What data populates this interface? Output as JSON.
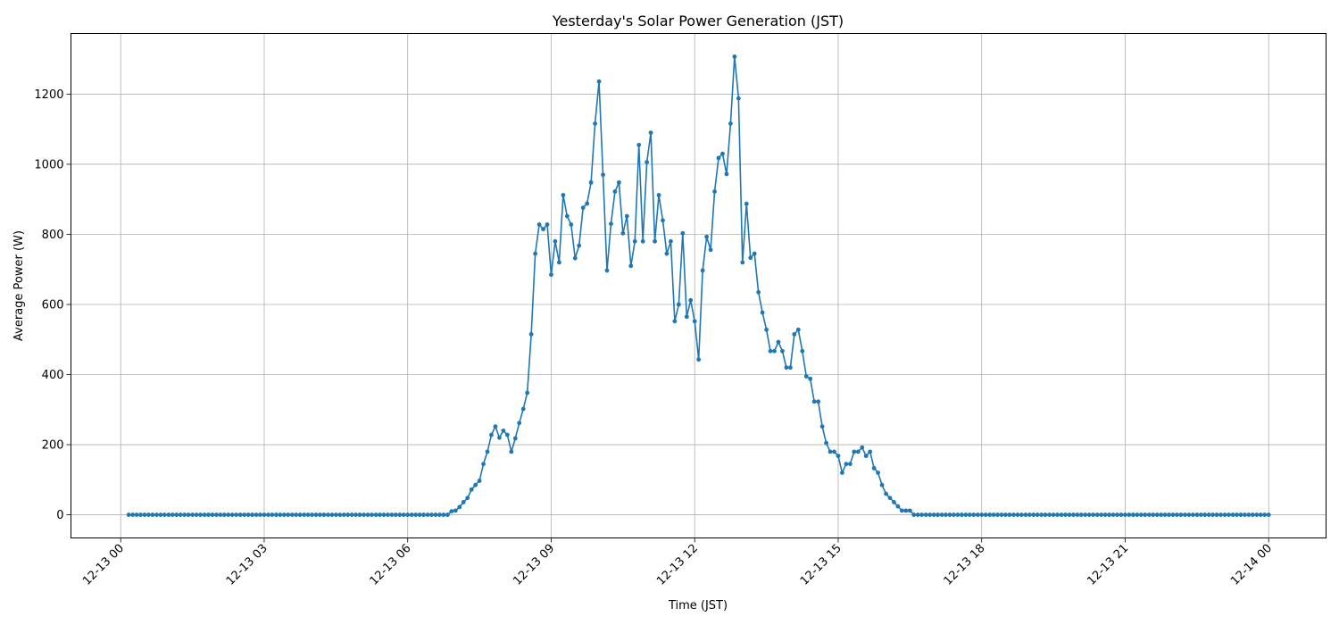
{
  "chart_data": {
    "type": "line",
    "title": "Yesterday's Solar Power Generation (JST)",
    "xlabel": "Time (JST)",
    "ylabel": "Average Power (W)",
    "x_range": [
      "12-13 00:10",
      "12-14 00:00"
    ],
    "interval_minutes": 5,
    "xlim_hours": [
      -1.04,
      25.2
    ],
    "ylim": [
      -66,
      1373
    ],
    "grid": true,
    "x_tick_labels": [
      "12-13 00",
      "12-13 03",
      "12-13 06",
      "12-13 09",
      "12-13 12",
      "12-13 15",
      "12-13 18",
      "12-13 21",
      "12-14 00"
    ],
    "x_tick_hours": [
      0,
      3,
      6,
      9,
      12,
      15,
      18,
      21,
      24
    ],
    "y_ticks": [
      0,
      200,
      400,
      600,
      800,
      1000,
      1200
    ],
    "y_tick_labels": [
      "0",
      "200",
      "400",
      "600",
      "800",
      "1000",
      "1200"
    ],
    "series": [
      {
        "color": "#1f77b4",
        "marker": "circle",
        "values": [
          0,
          0,
          0,
          0,
          0,
          0,
          0,
          0,
          0,
          0,
          0,
          0,
          0,
          0,
          0,
          0,
          0,
          0,
          0,
          0,
          0,
          0,
          0,
          0,
          0,
          0,
          0,
          0,
          0,
          0,
          0,
          0,
          0,
          0,
          0,
          0,
          0,
          0,
          0,
          0,
          0,
          0,
          0,
          0,
          0,
          0,
          0,
          0,
          0,
          0,
          0,
          0,
          0,
          0,
          0,
          0,
          0,
          0,
          0,
          0,
          0,
          0,
          0,
          0,
          0,
          0,
          0,
          0,
          0,
          0,
          0,
          0,
          0,
          0,
          0,
          0,
          0,
          0,
          0,
          0,
          0,
          10,
          12,
          22,
          36,
          48,
          72,
          85,
          97,
          145,
          180,
          228,
          252,
          220,
          240,
          228,
          180,
          218,
          262,
          302,
          348,
          515,
          745,
          828,
          815,
          828,
          685,
          780,
          720,
          912,
          852,
          828,
          732,
          768,
          876,
          888,
          948,
          1116,
          1236,
          970,
          697,
          830,
          922,
          948,
          803,
          852,
          710,
          780,
          1055,
          780,
          1006,
          1090,
          780,
          912,
          840,
          745,
          780,
          552,
          600,
          803,
          565,
          612,
          552,
          443,
          697,
          793,
          756,
          922,
          1018,
          1030,
          972,
          1116,
          1307,
          1188,
          720,
          887,
          733,
          745,
          635,
          577,
          528,
          467,
          467,
          493,
          467,
          420,
          420,
          515,
          528,
          467,
          395,
          388,
          323,
          323,
          252,
          205,
          180,
          180,
          168,
          120,
          145,
          145,
          180,
          180,
          192,
          168,
          180,
          133,
          120,
          85,
          60,
          48,
          36,
          24,
          12,
          12,
          12,
          0,
          0,
          0,
          0,
          0,
          0,
          0,
          0,
          0,
          0,
          0,
          0,
          0,
          0,
          0,
          0,
          0,
          0,
          0,
          0,
          0,
          0,
          0,
          0,
          0,
          0,
          0,
          0,
          0,
          0,
          0,
          0,
          0,
          0,
          0,
          0,
          0,
          0,
          0,
          0,
          0,
          0,
          0,
          0,
          0,
          0,
          0,
          0,
          0,
          0,
          0,
          0,
          0,
          0,
          0,
          0,
          0,
          0,
          0,
          0,
          0,
          0,
          0,
          0,
          0,
          0,
          0,
          0,
          0,
          0,
          0,
          0,
          0,
          0,
          0,
          0,
          0,
          0,
          0,
          0,
          0,
          0,
          0,
          0,
          0,
          0,
          0,
          0,
          0,
          0
        ]
      }
    ]
  }
}
